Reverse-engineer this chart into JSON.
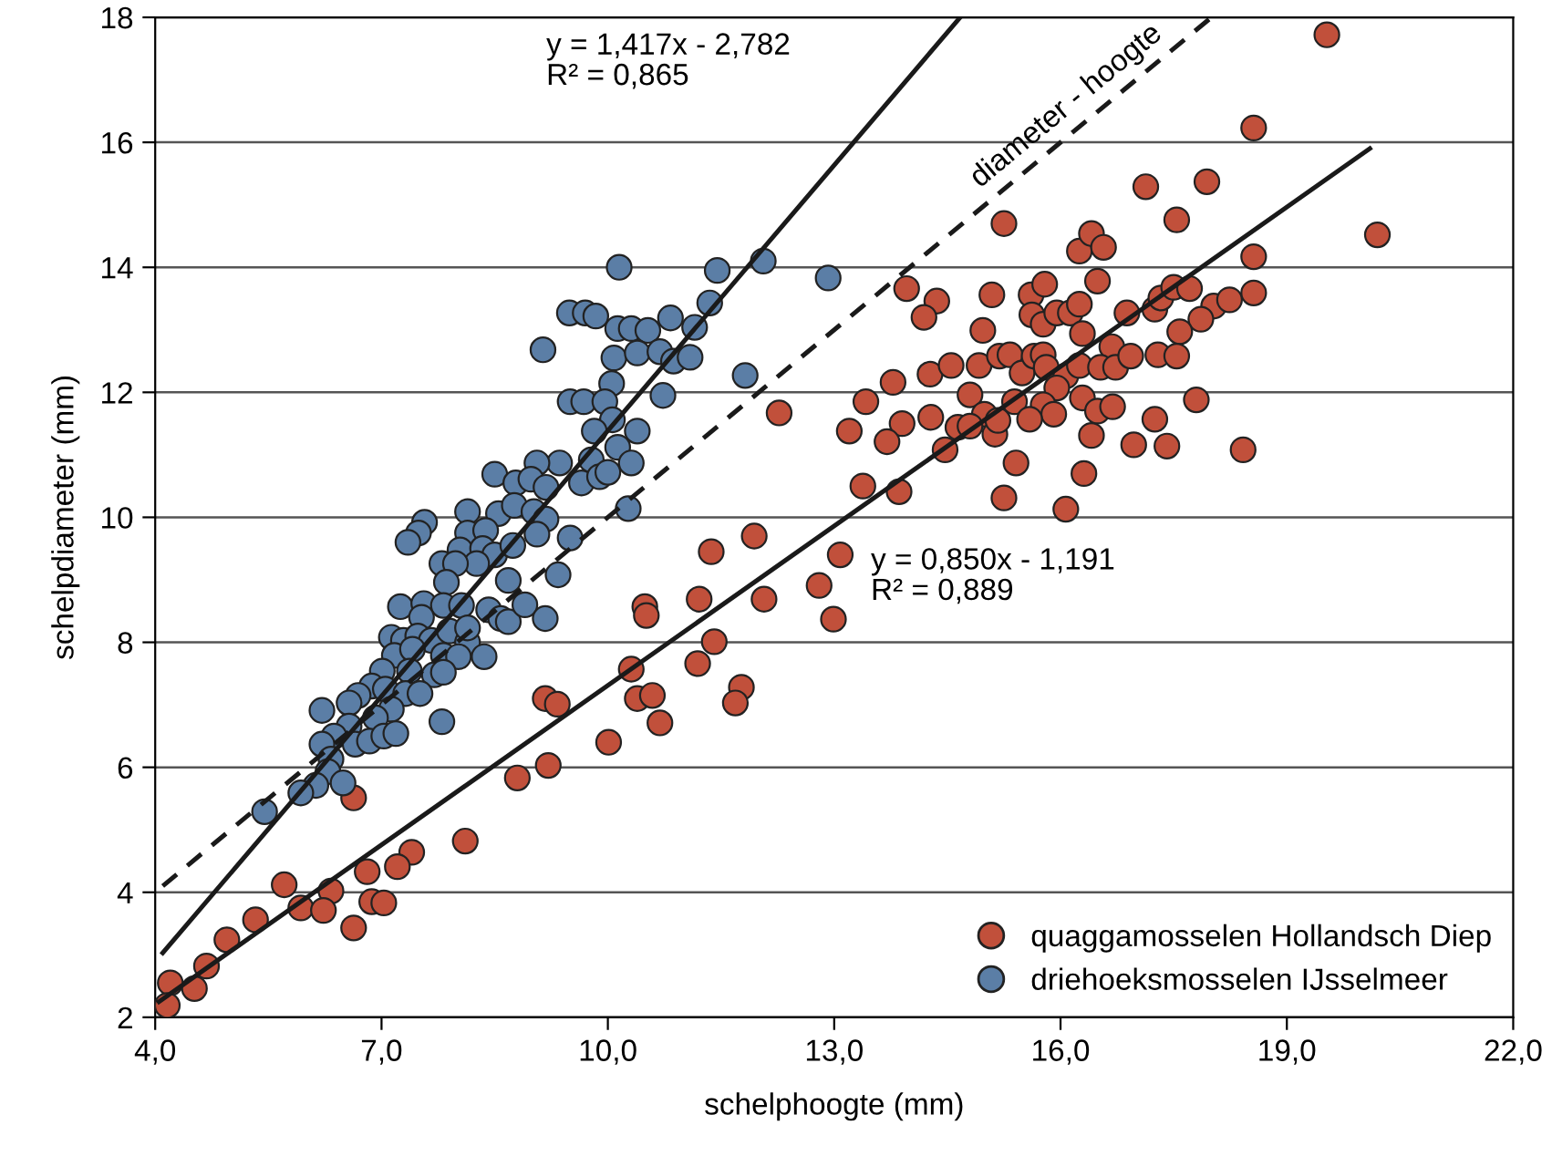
{
  "chart_data": {
    "type": "scatter",
    "xlabel": "schelphoogte (mm)",
    "ylabel": "schelpdiameter (mm)",
    "xlim": [
      4,
      22
    ],
    "ylim": [
      2,
      18
    ],
    "xticks": [
      {
        "value": 4,
        "label": "4,0"
      },
      {
        "value": 7,
        "label": "7,0"
      },
      {
        "value": 10,
        "label": "10,0"
      },
      {
        "value": 13,
        "label": "13,0"
      },
      {
        "value": 16,
        "label": "16,0"
      },
      {
        "value": 19,
        "label": "19,0"
      },
      {
        "value": 22,
        "label": "22,0"
      }
    ],
    "yticks": [
      2,
      4,
      6,
      8,
      10,
      12,
      14,
      16,
      18
    ],
    "grid": "y",
    "legend": "bottom right",
    "annotations": [
      "y = 1,417x - 2,782\nR² = 0,865",
      "y = 0,850x - 1,191\nR² = 0,889",
      {
        "text": "diameter - hoogte",
        "x": 16.2,
        "y": 16.4
      }
    ],
    "series": [
      {
        "name": "quaggamosselen Hollandsch Diep",
        "color": "#c1503b",
        "marker": "circle",
        "x": [
          12.27,
          11.94,
          11.37,
          10.49,
          10.51,
          11.21,
          12.07,
          12.8,
          11.41,
          11.19,
          10.31,
          11.77,
          11.69,
          10.39,
          10.59,
          10.69,
          9.17,
          9.33,
          10.01,
          8.8,
          9.21,
          6.63,
          8.11,
          7.4,
          7.21,
          6.81,
          5.71,
          6.33,
          5.93,
          6.23,
          6.87,
          7.03,
          6.63,
          5.33,
          4.95,
          4.68,
          4.2,
          4.52,
          4.16,
          19.53,
          18.56,
          17.13,
          17.94,
          17.54,
          15.25,
          20.2,
          16.25,
          16.41,
          16.57,
          18.56,
          16.49,
          13.96,
          14.36,
          14.19,
          15.09,
          15.61,
          15.79,
          15.62,
          15.77,
          15.95,
          16.13,
          16.25,
          16.29,
          16.88,
          17.25,
          17.33,
          17.5,
          17.71,
          18.03,
          18.24,
          18.56,
          17.86,
          17.58,
          14.97,
          16.68,
          17.29,
          17.54,
          13.78,
          14.27,
          14.55,
          14.92,
          15.19,
          15.33,
          15.49,
          15.65,
          15.77,
          15.81,
          16.07,
          16.25,
          16.53,
          16.73,
          16.93,
          15.95,
          14.8,
          16.29,
          16.49,
          16.69,
          17.8,
          13.42,
          15.39,
          15.77,
          14.99,
          15.91,
          15.59,
          13.9,
          14.28,
          14.64,
          14.8,
          15.13,
          15.17,
          13.2,
          13.7,
          17.25,
          16.41,
          14.47,
          16.97,
          17.41,
          18.42,
          15.41,
          16.31,
          13.38,
          13.86,
          15.25,
          16.07,
          13.08,
          12.99
        ],
        "values": [
          11.67,
          9.7,
          9.45,
          8.57,
          8.43,
          8.69,
          8.69,
          8.91,
          8.01,
          7.66,
          7.57,
          7.28,
          7.03,
          7.1,
          7.15,
          6.71,
          7.1,
          7.01,
          6.4,
          5.83,
          6.03,
          5.51,
          4.82,
          4.64,
          4.41,
          4.33,
          4.12,
          4.02,
          3.75,
          3.71,
          3.85,
          3.83,
          3.43,
          3.56,
          3.24,
          2.82,
          2.55,
          2.46,
          2.19,
          17.72,
          16.23,
          15.29,
          15.37,
          14.76,
          14.7,
          14.52,
          14.26,
          14.54,
          14.32,
          14.17,
          13.78,
          13.66,
          13.46,
          13.2,
          13.56,
          13.56,
          13.73,
          13.24,
          13.09,
          13.27,
          13.27,
          13.41,
          12.94,
          13.27,
          13.33,
          13.51,
          13.68,
          13.66,
          13.38,
          13.48,
          13.59,
          13.17,
          12.97,
          12.99,
          12.73,
          12.6,
          12.58,
          12.16,
          12.29,
          12.43,
          12.43,
          12.58,
          12.6,
          12.31,
          12.58,
          12.6,
          12.4,
          12.26,
          12.43,
          12.4,
          12.4,
          12.58,
          12.07,
          11.96,
          11.91,
          11.7,
          11.77,
          11.88,
          11.85,
          11.85,
          11.8,
          11.65,
          11.65,
          11.57,
          11.5,
          11.6,
          11.44,
          11.46,
          11.33,
          11.55,
          11.38,
          11.21,
          11.57,
          11.31,
          11.08,
          11.16,
          11.14,
          11.08,
          10.87,
          10.7,
          10.5,
          10.41,
          10.31,
          10.13,
          9.4,
          8.37
        ]
      },
      {
        "name": "driehoeksmosselen IJsselmeer",
        "color": "#5b7ea6",
        "marker": "circle",
        "x": [
          10.15,
          11.45,
          12.06,
          9.49,
          9.7,
          9.84,
          10.13,
          10.31,
          10.53,
          10.83,
          11.35,
          11.15,
          9.14,
          10.08,
          10.39,
          10.69,
          10.87,
          11.09,
          11.82,
          10.05,
          9.5,
          9.68,
          9.96,
          10.73,
          10.06,
          9.82,
          10.39,
          10.13,
          10.31,
          9.78,
          9.36,
          9.06,
          8.5,
          8.78,
          8.98,
          9.18,
          9.65,
          9.89,
          10.0,
          10.27,
          8.14,
          8.55,
          8.76,
          9.02,
          9.18,
          7.57,
          7.49,
          7.35,
          8.14,
          8.38,
          9.06,
          9.5,
          8.04,
          8.34,
          8.5,
          8.74,
          7.8,
          8.26,
          7.98,
          7.86,
          8.68,
          9.34,
          7.25,
          7.56,
          7.82,
          8.06,
          8.42,
          8.58,
          8.68,
          8.9,
          9.17,
          7.53,
          7.13,
          7.29,
          7.48,
          7.66,
          7.9,
          8.14,
          8.14,
          7.17,
          7.41,
          7.82,
          8.02,
          8.36,
          7.01,
          7.37,
          7.7,
          7.82,
          6.87,
          7.05,
          7.32,
          7.51,
          6.69,
          6.57,
          6.21,
          7.13,
          6.92,
          7.8,
          6.57,
          6.37,
          6.65,
          6.84,
          7.03,
          7.19,
          6.21,
          6.33,
          6.29,
          6.13,
          5.93,
          6.49,
          5.45,
          12.92
        ],
        "values": [
          14.0,
          13.95,
          14.1,
          13.27,
          13.27,
          13.22,
          13.02,
          13.02,
          12.99,
          13.19,
          13.43,
          13.04,
          12.68,
          12.55,
          12.63,
          12.65,
          12.5,
          12.56,
          12.27,
          12.14,
          11.85,
          11.85,
          11.85,
          11.95,
          11.56,
          11.38,
          11.38,
          11.12,
          10.87,
          10.92,
          10.87,
          10.87,
          10.69,
          10.55,
          10.61,
          10.48,
          10.55,
          10.65,
          10.72,
          10.14,
          10.09,
          10.06,
          10.19,
          10.09,
          9.97,
          9.92,
          9.75,
          9.6,
          9.75,
          9.79,
          9.73,
          9.67,
          9.48,
          9.5,
          9.4,
          9.55,
          9.26,
          9.26,
          9.26,
          8.96,
          8.99,
          9.08,
          8.57,
          8.62,
          8.59,
          8.59,
          8.52,
          8.38,
          8.33,
          8.6,
          8.38,
          8.4,
          8.08,
          8.03,
          8.1,
          8.03,
          8.18,
          8.0,
          8.23,
          7.79,
          7.89,
          7.79,
          7.77,
          7.77,
          7.54,
          7.54,
          7.48,
          7.52,
          7.3,
          7.25,
          7.18,
          7.18,
          7.15,
          7.03,
          6.91,
          6.93,
          6.79,
          6.73,
          6.66,
          6.5,
          6.37,
          6.42,
          6.5,
          6.54,
          6.37,
          6.13,
          5.93,
          5.71,
          5.59,
          5.75,
          5.29,
          13.83
        ]
      },
      {
        "type": "line",
        "color": "#1a1a1a",
        "line_style": "solid",
        "x": [
          4.1,
          14.67
        ],
        "values": [
          3.03,
          18.0
        ]
      },
      {
        "type": "line",
        "color": "#1a1a1a",
        "line_style": "solid",
        "x": [
          4.05,
          20.1
        ],
        "values": [
          2.25,
          15.9
        ]
      },
      {
        "type": "line",
        "color": "#1a1a1a",
        "line_style": "dashed",
        "x": [
          4.1,
          18.0
        ],
        "values": [
          4.1,
          18.0
        ]
      }
    ]
  }
}
